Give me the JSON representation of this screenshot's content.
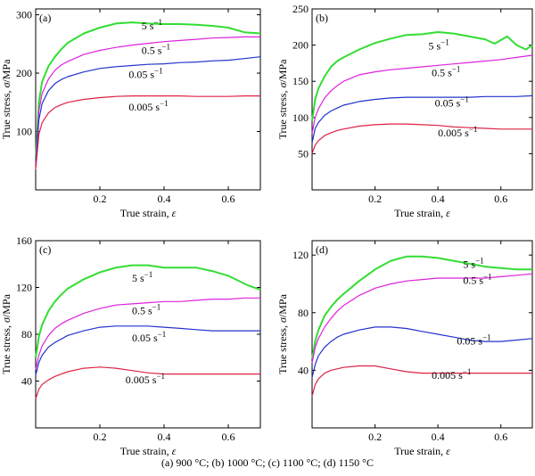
{
  "figure_caption": "(a) 900 °C; (b) 1000 °C; (c) 1100 °C; (d) 1150 °C",
  "chart_data": [
    {
      "type": "line",
      "panel": "(a)",
      "xlabel": "True strain, ε",
      "ylabel": "True stress, σ/MPa",
      "xlim": [
        0,
        0.7
      ],
      "ylim": [
        0,
        310
      ],
      "xticks": [
        0.2,
        0.4,
        0.6
      ],
      "yticks": [
        100,
        200,
        300
      ],
      "xtick_labels": [
        "0.2",
        "0.4",
        "0.6"
      ],
      "ytick_labels": [
        "100",
        "200",
        "300"
      ],
      "series": [
        {
          "name": "5 s⁻¹",
          "color": "#33dd33",
          "label": "5 s",
          "exp": "−1",
          "x": [
            0,
            0.01,
            0.02,
            0.04,
            0.06,
            0.08,
            0.1,
            0.15,
            0.2,
            0.25,
            0.3,
            0.35,
            0.4,
            0.45,
            0.5,
            0.55,
            0.6,
            0.65,
            0.7
          ],
          "y": [
            50,
            150,
            185,
            212,
            228,
            241,
            252,
            268,
            278,
            285,
            287,
            285,
            284,
            284,
            283,
            281,
            278,
            270,
            268
          ]
        },
        {
          "name": "0.5 s⁻¹",
          "color": "#dd22dd",
          "label": "0.5 s",
          "exp": "−1",
          "x": [
            0,
            0.01,
            0.02,
            0.04,
            0.06,
            0.08,
            0.1,
            0.15,
            0.2,
            0.25,
            0.3,
            0.35,
            0.4,
            0.45,
            0.5,
            0.55,
            0.6,
            0.65,
            0.7
          ],
          "y": [
            45,
            135,
            165,
            190,
            205,
            214,
            220,
            232,
            239,
            244,
            248,
            251,
            254,
            256,
            258,
            260,
            261,
            262,
            262
          ]
        },
        {
          "name": "0.05 s⁻¹",
          "color": "#2233cc",
          "label": "0.05 s",
          "exp": "−1",
          "x": [
            0,
            0.01,
            0.02,
            0.04,
            0.06,
            0.08,
            0.1,
            0.15,
            0.2,
            0.25,
            0.3,
            0.35,
            0.4,
            0.45,
            0.5,
            0.55,
            0.6,
            0.65,
            0.7
          ],
          "y": [
            40,
            120,
            148,
            170,
            182,
            189,
            194,
            202,
            208,
            211,
            213,
            215,
            216,
            218,
            219,
            221,
            222,
            225,
            228
          ]
        },
        {
          "name": "0.005 s⁻¹",
          "color": "#dd2244",
          "label": "0.005 s",
          "exp": "−1",
          "x": [
            0,
            0.01,
            0.02,
            0.04,
            0.06,
            0.08,
            0.1,
            0.15,
            0.2,
            0.25,
            0.3,
            0.35,
            0.4,
            0.45,
            0.5,
            0.55,
            0.6,
            0.65,
            0.7
          ],
          "y": [
            35,
            95,
            115,
            132,
            141,
            146,
            150,
            155,
            158,
            160,
            161,
            161,
            161,
            161,
            160,
            160,
            160,
            161,
            161
          ]
        }
      ]
    },
    {
      "type": "line",
      "panel": "(b)",
      "xlabel": "True strain, ε",
      "ylabel": "True stress, σ/MPa",
      "xlim": [
        0,
        0.7
      ],
      "ylim": [
        0,
        250
      ],
      "xticks": [
        0.2,
        0.4,
        0.6
      ],
      "yticks": [
        50,
        100,
        150,
        200,
        250
      ],
      "xtick_labels": [
        "0.2",
        "0.4",
        "0.6"
      ],
      "ytick_labels": [
        "50",
        "100",
        "150",
        "200",
        "250"
      ],
      "series": [
        {
          "name": "5 s⁻¹",
          "color": "#33dd33",
          "label": "5 s",
          "exp": "−1",
          "x": [
            0,
            0.01,
            0.02,
            0.04,
            0.06,
            0.08,
            0.1,
            0.15,
            0.2,
            0.25,
            0.3,
            0.35,
            0.4,
            0.45,
            0.5,
            0.55,
            0.58,
            0.62,
            0.65,
            0.68,
            0.7
          ],
          "y": [
            95,
            125,
            140,
            157,
            170,
            178,
            183,
            194,
            203,
            209,
            214,
            215,
            218,
            216,
            212,
            208,
            202,
            212,
            200,
            194,
            200
          ]
        },
        {
          "name": "0.5 s⁻¹",
          "color": "#dd22dd",
          "label": "0.5 s",
          "exp": "−1",
          "x": [
            0,
            0.01,
            0.02,
            0.04,
            0.06,
            0.08,
            0.1,
            0.15,
            0.2,
            0.25,
            0.3,
            0.35,
            0.4,
            0.45,
            0.5,
            0.55,
            0.6,
            0.65,
            0.7
          ],
          "y": [
            78,
            100,
            112,
            127,
            137,
            144,
            150,
            159,
            163,
            166,
            168,
            170,
            172,
            174,
            176,
            178,
            180,
            183,
            186
          ]
        },
        {
          "name": "0.05 s⁻¹",
          "color": "#2233cc",
          "label": "0.05 s",
          "exp": "−1",
          "x": [
            0,
            0.01,
            0.02,
            0.04,
            0.06,
            0.08,
            0.1,
            0.15,
            0.2,
            0.25,
            0.3,
            0.35,
            0.4,
            0.45,
            0.5,
            0.55,
            0.6,
            0.65,
            0.7
          ],
          "y": [
            65,
            85,
            93,
            103,
            109,
            113,
            117,
            122,
            125,
            127,
            128,
            128,
            128,
            128,
            128,
            129,
            129,
            129,
            130
          ]
        },
        {
          "name": "0.005 s⁻¹",
          "color": "#dd2244",
          "label": "0.005 s",
          "exp": "−1",
          "x": [
            0,
            0.01,
            0.02,
            0.04,
            0.06,
            0.08,
            0.1,
            0.15,
            0.2,
            0.25,
            0.3,
            0.35,
            0.4,
            0.45,
            0.5,
            0.55,
            0.6,
            0.65,
            0.7
          ],
          "y": [
            50,
            62,
            68,
            75,
            79,
            82,
            84,
            88,
            90,
            91,
            91,
            90,
            89,
            87,
            86,
            85,
            84,
            84,
            84
          ]
        }
      ]
    },
    {
      "type": "line",
      "panel": "(c)",
      "xlabel": "True strain, ε",
      "ylabel": "True stress, σ/MPa",
      "xlim": [
        0,
        0.7
      ],
      "ylim": [
        0,
        160
      ],
      "xticks": [
        0.2,
        0.4,
        0.6
      ],
      "yticks": [
        40,
        80,
        120,
        160
      ],
      "xtick_labels": [
        "0.2",
        "0.4",
        "0.6"
      ],
      "ytick_labels": [
        "40",
        "80",
        "120",
        "160"
      ],
      "series": [
        {
          "name": "5 s⁻¹",
          "color": "#33dd33",
          "label": "5 s",
          "exp": "−1",
          "x": [
            0,
            0.01,
            0.02,
            0.04,
            0.06,
            0.08,
            0.1,
            0.15,
            0.2,
            0.25,
            0.3,
            0.35,
            0.4,
            0.45,
            0.5,
            0.55,
            0.6,
            0.63,
            0.66,
            0.7
          ],
          "y": [
            60,
            78,
            88,
            100,
            108,
            114,
            119,
            127,
            133,
            137,
            139,
            139,
            137,
            137,
            137,
            134,
            130,
            126,
            122,
            118
          ]
        },
        {
          "name": "0.5 s⁻¹",
          "color": "#dd22dd",
          "label": "0.5 s",
          "exp": "−1",
          "x": [
            0,
            0.01,
            0.02,
            0.04,
            0.06,
            0.08,
            0.1,
            0.15,
            0.2,
            0.25,
            0.3,
            0.35,
            0.4,
            0.45,
            0.5,
            0.55,
            0.6,
            0.65,
            0.7
          ],
          "y": [
            50,
            62,
            70,
            79,
            85,
            89,
            92,
            98,
            102,
            105,
            106,
            107,
            108,
            108,
            109,
            110,
            110,
            111,
            111
          ]
        },
        {
          "name": "0.05 s⁻¹",
          "color": "#2233cc",
          "label": "0.05 s",
          "exp": "−1",
          "x": [
            0,
            0.01,
            0.02,
            0.04,
            0.06,
            0.08,
            0.1,
            0.15,
            0.2,
            0.25,
            0.3,
            0.35,
            0.4,
            0.45,
            0.5,
            0.55,
            0.6,
            0.65,
            0.7
          ],
          "y": [
            45,
            56,
            62,
            69,
            73,
            76,
            79,
            83,
            86,
            87,
            87,
            87,
            86,
            85,
            84,
            83,
            83,
            83,
            83
          ]
        },
        {
          "name": "0.005 s⁻¹",
          "color": "#dd2244",
          "label": "0.005 s",
          "exp": "−1",
          "x": [
            0,
            0.01,
            0.02,
            0.04,
            0.06,
            0.08,
            0.1,
            0.15,
            0.2,
            0.25,
            0.3,
            0.35,
            0.4,
            0.45,
            0.5,
            0.55,
            0.6,
            0.65,
            0.7
          ],
          "y": [
            25,
            33,
            37,
            41,
            44,
            46,
            48,
            51,
            52,
            51,
            49,
            47,
            46,
            46,
            46,
            46,
            46,
            46,
            46
          ]
        }
      ]
    },
    {
      "type": "line",
      "panel": "(d)",
      "xlabel": "True strain, ε",
      "ylabel": "True stress, σ/MPa",
      "xlim": [
        0,
        0.7
      ],
      "ylim": [
        0,
        130
      ],
      "xticks": [
        0.2,
        0.4,
        0.6
      ],
      "yticks": [
        40,
        80,
        120
      ],
      "xtick_labels": [
        "0.2",
        "0.4",
        "0.6"
      ],
      "ytick_labels": [
        "40",
        "80",
        "120"
      ],
      "series": [
        {
          "name": "5 s⁻¹",
          "color": "#33dd33",
          "label": "5 s",
          "exp": "−1",
          "x": [
            0,
            0.01,
            0.02,
            0.04,
            0.06,
            0.08,
            0.1,
            0.15,
            0.2,
            0.25,
            0.3,
            0.35,
            0.4,
            0.45,
            0.5,
            0.55,
            0.6,
            0.65,
            0.7
          ],
          "y": [
            48,
            60,
            68,
            78,
            84,
            89,
            93,
            102,
            110,
            116,
            119,
            119,
            118,
            116,
            114,
            112,
            111,
            110,
            110
          ]
        },
        {
          "name": "0.5 s⁻¹",
          "color": "#dd22dd",
          "label": "0.5 s",
          "exp": "−1",
          "x": [
            0,
            0.01,
            0.02,
            0.04,
            0.06,
            0.08,
            0.1,
            0.15,
            0.2,
            0.25,
            0.3,
            0.35,
            0.4,
            0.45,
            0.5,
            0.55,
            0.6,
            0.65,
            0.7
          ],
          "y": [
            45,
            56,
            62,
            70,
            76,
            81,
            85,
            92,
            97,
            100,
            102,
            103,
            104,
            104,
            104,
            104,
            105,
            106,
            107
          ]
        },
        {
          "name": "0.05 s⁻¹",
          "color": "#2233cc",
          "label": "0.05 s",
          "exp": "−1",
          "x": [
            0,
            0.01,
            0.02,
            0.04,
            0.06,
            0.08,
            0.1,
            0.15,
            0.2,
            0.25,
            0.3,
            0.35,
            0.4,
            0.45,
            0.5,
            0.55,
            0.6,
            0.65,
            0.7
          ],
          "y": [
            35,
            44,
            50,
            56,
            60,
            63,
            65,
            68,
            70,
            70,
            69,
            67,
            65,
            63,
            61,
            60,
            60,
            61,
            62
          ]
        },
        {
          "name": "0.005 s⁻¹",
          "color": "#dd2244",
          "label": "0.005 s",
          "exp": "−1",
          "x": [
            0,
            0.01,
            0.02,
            0.04,
            0.06,
            0.08,
            0.1,
            0.15,
            0.2,
            0.25,
            0.3,
            0.35,
            0.4,
            0.45,
            0.5,
            0.55,
            0.6,
            0.65,
            0.7
          ],
          "y": [
            22,
            30,
            34,
            38,
            40,
            41,
            42,
            43,
            43,
            41,
            39,
            38,
            38,
            38,
            38,
            38,
            38,
            38,
            38
          ]
        }
      ]
    }
  ]
}
